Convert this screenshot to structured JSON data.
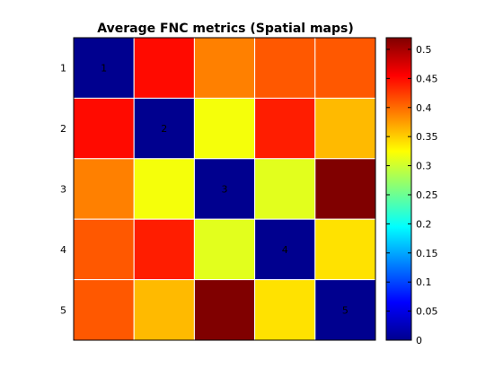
{
  "chart_data": {
    "type": "heatmap",
    "title": "Average FNC metrics (Spatial maps)",
    "row_labels": [
      "1",
      "2",
      "3",
      "4",
      "5"
    ],
    "diagonal_labels": [
      "1",
      "2",
      "3",
      "4",
      "5"
    ],
    "values": [
      [
        0.0,
        0.45,
        0.39,
        0.41,
        0.41
      ],
      [
        0.45,
        0.0,
        0.32,
        0.44,
        0.36
      ],
      [
        0.39,
        0.32,
        0.0,
        0.31,
        0.52
      ],
      [
        0.41,
        0.44,
        0.31,
        0.0,
        0.34
      ],
      [
        0.41,
        0.36,
        0.52,
        0.34,
        0.0
      ]
    ],
    "colormap": "jet",
    "clim": [
      0,
      0.52
    ],
    "colorbar_ticks": [
      "0",
      "0.05",
      "0.1",
      "0.15",
      "0.2",
      "0.25",
      "0.3",
      "0.35",
      "0.4",
      "0.45",
      "0.5"
    ],
    "colorbar_tick_values": [
      0,
      0.05,
      0.1,
      0.15,
      0.2,
      0.25,
      0.3,
      0.35,
      0.4,
      0.45,
      0.5
    ],
    "grid_color": "#ffffff"
  }
}
